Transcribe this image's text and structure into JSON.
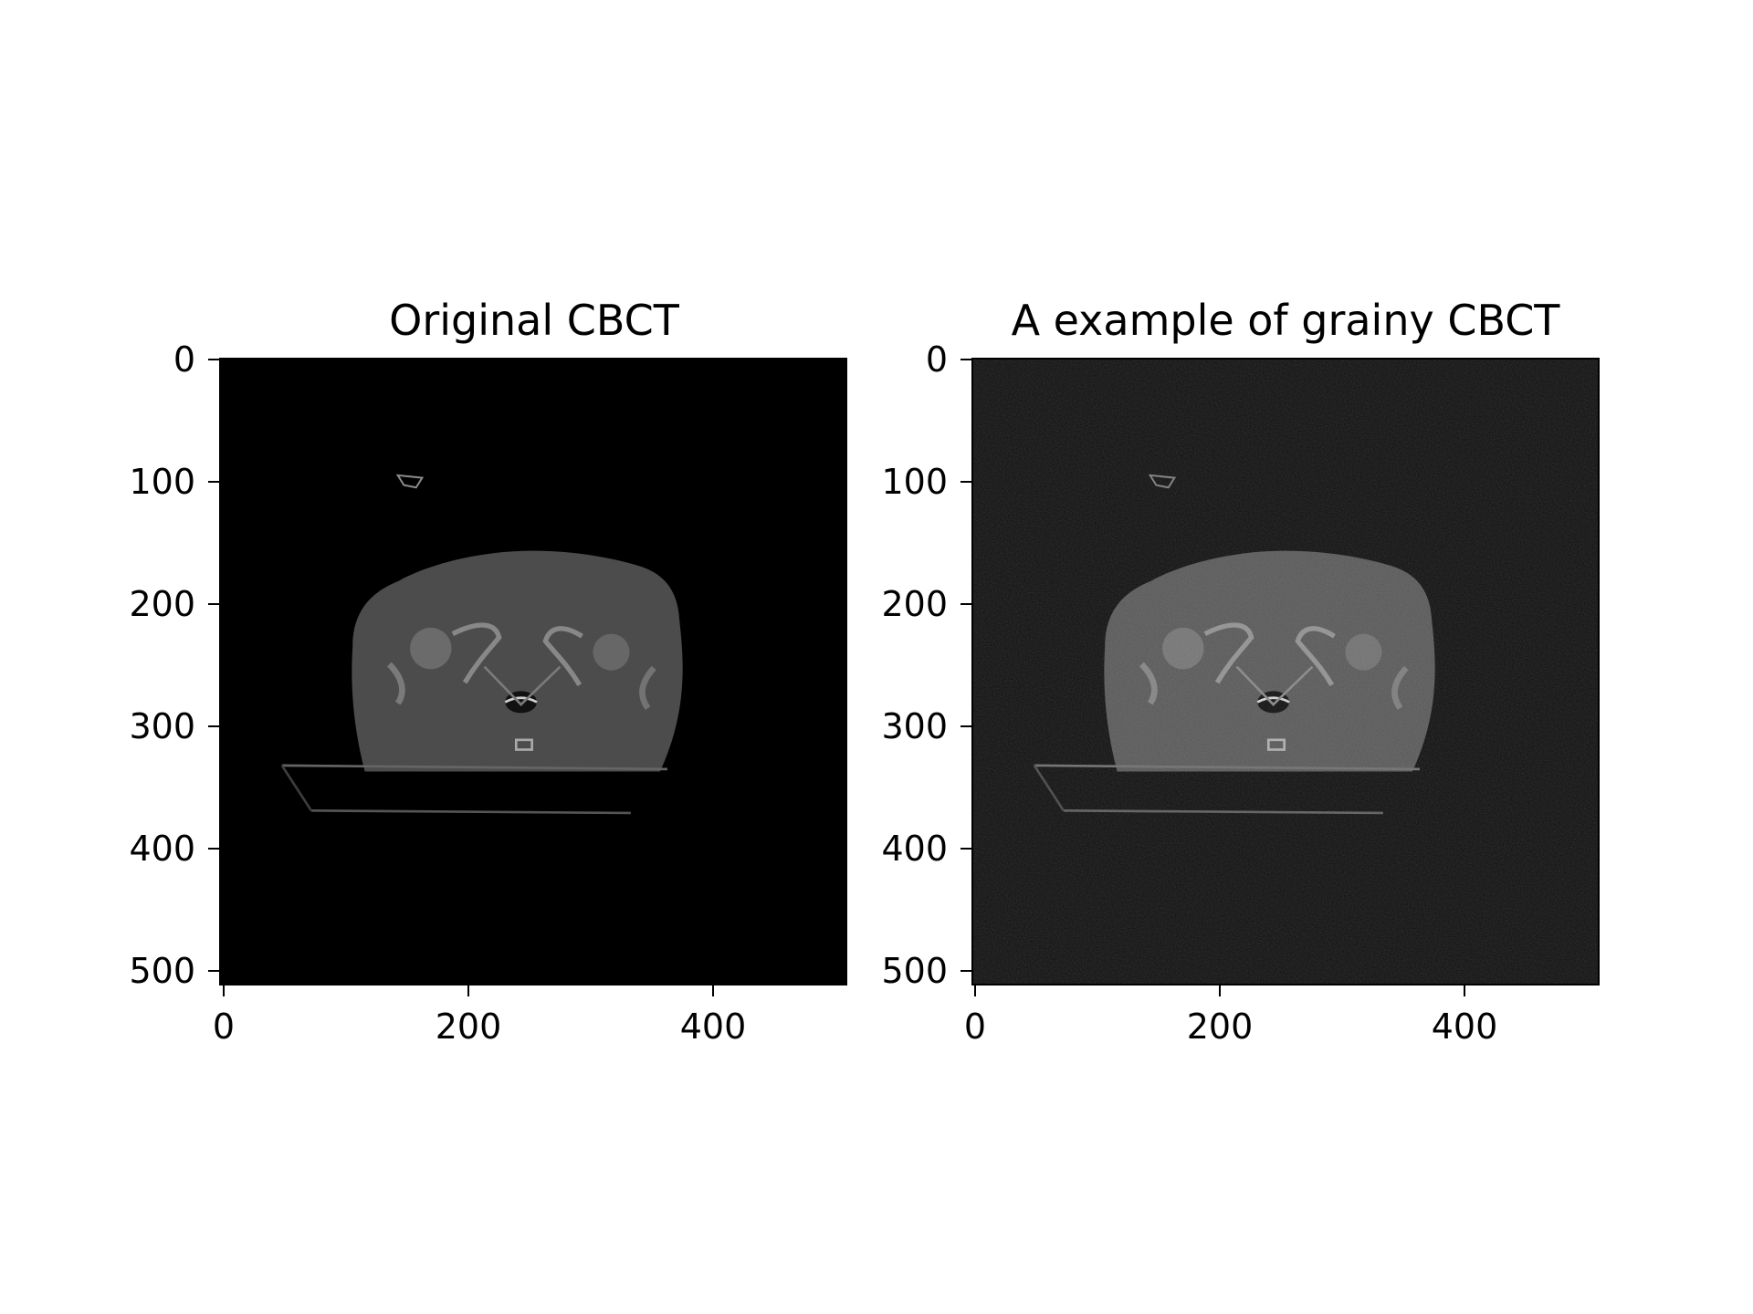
{
  "figure": {
    "panels": [
      {
        "title": "Original CBCT",
        "image_description": "Axial CT slice of the pelvis on black background"
      },
      {
        "title": "A example of grainy CBCT",
        "image_description": "Same axial CT slice with visible grain noise"
      }
    ],
    "axes": {
      "y_ticks": [
        "0",
        "100",
        "200",
        "300",
        "400",
        "500"
      ],
      "x_ticks": [
        "0",
        "200",
        "400"
      ],
      "x_range": [
        0,
        512
      ],
      "y_range": [
        0,
        512
      ]
    },
    "colors": {
      "background": "#ffffff",
      "image_background_original": "#000000",
      "image_background_grainy": "#111111",
      "anatomy_gray": "#5a5a5a"
    }
  }
}
